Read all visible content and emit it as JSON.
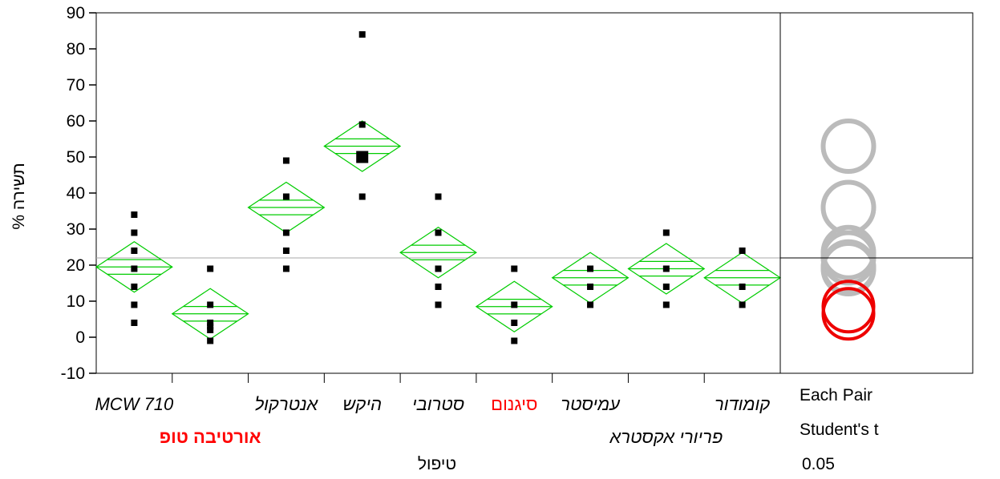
{
  "chart_data": {
    "type": "scatter",
    "subtype": "oneway means diamonds with comparison circles",
    "ylabel": "% תשירה",
    "xlabel": "טיפול",
    "ylim": [
      -10,
      90
    ],
    "yticks": [
      -10,
      0,
      10,
      20,
      30,
      40,
      50,
      60,
      70,
      80,
      90
    ],
    "grand_mean": 22,
    "groups": [
      {
        "label": "MCW 710",
        "mean": 19.5,
        "ci": [
          12.5,
          26.5
        ],
        "points": [
          4,
          9,
          14,
          19,
          24,
          29,
          34
        ],
        "highlight": false
      },
      {
        "label": "אורטיבה טופ",
        "mean": 6.5,
        "ci": [
          -0.5,
          13.5
        ],
        "points": [
          -1,
          2,
          3,
          4,
          9,
          19
        ],
        "highlight": true
      },
      {
        "label": "אנטרקול",
        "mean": 36,
        "ci": [
          29,
          43
        ],
        "points": [
          19,
          24,
          29,
          39,
          49
        ],
        "highlight": false
      },
      {
        "label": "היקש",
        "mean": 53,
        "ci": [
          46,
          60
        ],
        "points": [
          39,
          50,
          59,
          84
        ],
        "highlight": false
      },
      {
        "label": "סטרובי",
        "mean": 23.5,
        "ci": [
          16.5,
          30.5
        ],
        "points": [
          9,
          14,
          19,
          29,
          39
        ],
        "highlight": false
      },
      {
        "label": "סיגנום",
        "mean": 8.5,
        "ci": [
          1.5,
          15.5
        ],
        "points": [
          -1,
          4,
          9,
          19
        ],
        "highlight": true
      },
      {
        "label": "עמיסטר",
        "mean": 16.5,
        "ci": [
          9.5,
          23.5
        ],
        "points": [
          9,
          14,
          19
        ],
        "highlight": false
      },
      {
        "label": "פריורי אקסטרא",
        "mean": 19,
        "ci": [
          12,
          26
        ],
        "points": [
          9,
          14,
          19,
          29
        ],
        "highlight": false
      },
      {
        "label": "קומודור",
        "mean": 16.5,
        "ci": [
          9.5,
          23.5
        ],
        "points": [
          9,
          14,
          24
        ],
        "highlight": false
      }
    ],
    "comparison_circles": [
      {
        "center": 53,
        "color": "#bbbbbb"
      },
      {
        "center": 36,
        "color": "#bbbbbb"
      },
      {
        "center": 23.5,
        "color": "#bbbbbb"
      },
      {
        "center": 22,
        "color": "#bbbbbb"
      },
      {
        "center": 19.5,
        "color": "#bbbbbb"
      },
      {
        "center": 19,
        "color": "#bbbbbb"
      },
      {
        "center": 6.5,
        "color": "#ee0000"
      },
      {
        "center": 8.5,
        "color": "#ee0000"
      }
    ],
    "comparison_radius": 7,
    "legend": [
      "Each Pair",
      "Student's t",
      "0.05"
    ],
    "colors": {
      "diamond": "#00cc00",
      "points": "#000000",
      "highlight_text": "#ff0000",
      "circle_gray": "#bbbbbb",
      "circle_red": "#ee0000"
    }
  }
}
